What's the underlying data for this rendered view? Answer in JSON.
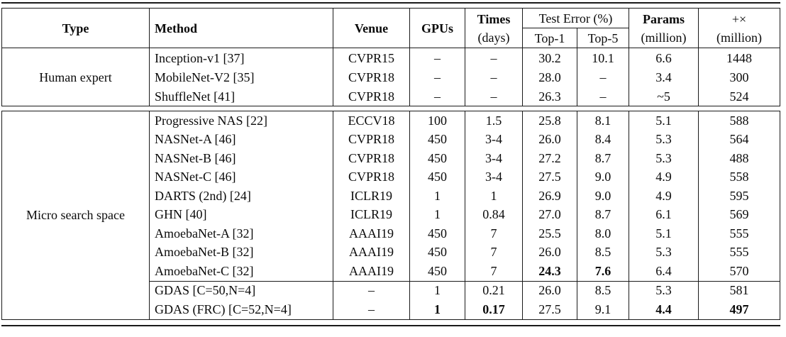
{
  "header": {
    "type": "Type",
    "method": "Method",
    "venue": "Venue",
    "gpus": "GPUs",
    "times": "Times",
    "times_sub": "(days)",
    "test_error": "Test Error (%)",
    "top1": "Top-1",
    "top5": "Top-5",
    "params": "Params",
    "params_sub": "(million)",
    "flops": "+×",
    "flops_sub": "(million)"
  },
  "sections": [
    {
      "type_label": "Human expert",
      "groups": [
        {
          "rows": [
            {
              "method": "Inception-v1 [37]",
              "venue": "CVPR15",
              "gpus": "–",
              "times": "–",
              "top1": "30.2",
              "top5": "10.1",
              "params": "6.6",
              "flops": "1448"
            },
            {
              "method": "MobileNet-V2 [35]",
              "venue": "CVPR18",
              "gpus": "–",
              "times": "–",
              "top1": "28.0",
              "top5": "–",
              "params": "3.4",
              "flops": "300"
            },
            {
              "method": "ShuffleNet [41]",
              "venue": "CVPR18",
              "gpus": "–",
              "times": "–",
              "top1": "26.3",
              "top5": "–",
              "params": "~5",
              "flops": "524"
            }
          ]
        }
      ]
    },
    {
      "type_label": "Micro search space",
      "groups": [
        {
          "rows": [
            {
              "method": "Progressive NAS [22]",
              "venue": "ECCV18",
              "gpus": "100",
              "times": "1.5",
              "top1": "25.8",
              "top5": "8.1",
              "params": "5.1",
              "flops": "588"
            },
            {
              "method": "NASNet-A [46]",
              "venue": "CVPR18",
              "gpus": "450",
              "times": "3-4",
              "top1": "26.0",
              "top5": "8.4",
              "params": "5.3",
              "flops": "564"
            },
            {
              "method": "NASNet-B [46]",
              "venue": "CVPR18",
              "gpus": "450",
              "times": "3-4",
              "top1": "27.2",
              "top5": "8.7",
              "params": "5.3",
              "flops": "488"
            },
            {
              "method": "NASNet-C [46]",
              "venue": "CVPR18",
              "gpus": "450",
              "times": "3-4",
              "top1": "27.5",
              "top5": "9.0",
              "params": "4.9",
              "flops": "558"
            },
            {
              "method": "DARTS (2nd) [24]",
              "venue": "ICLR19",
              "gpus": "1",
              "times": "1",
              "top1": "26.9",
              "top5": "9.0",
              "params": "4.9",
              "flops": "595"
            },
            {
              "method": "GHN [40]",
              "venue": "ICLR19",
              "gpus": "1",
              "times": "0.84",
              "top1": "27.0",
              "top5": "8.7",
              "params": "6.1",
              "flops": "569"
            },
            {
              "method": "AmoebaNet-A [32]",
              "venue": "AAAI19",
              "gpus": "450",
              "times": "7",
              "top1": "25.5",
              "top5": "8.0",
              "params": "5.1",
              "flops": "555"
            },
            {
              "method": "AmoebaNet-B [32]",
              "venue": "AAAI19",
              "gpus": "450",
              "times": "7",
              "top1": "26.0",
              "top5": "8.5",
              "params": "5.3",
              "flops": "555"
            },
            {
              "method": "AmoebaNet-C [32]",
              "venue": "AAAI19",
              "gpus": "450",
              "times": "7",
              "top1": "24.3",
              "top5": "7.6",
              "params": "6.4",
              "flops": "570",
              "bold": [
                "top1",
                "top5"
              ]
            }
          ]
        },
        {
          "rows": [
            {
              "method": "GDAS [C=50,N=4]",
              "venue": "–",
              "gpus": "1",
              "times": "0.21",
              "top1": "26.0",
              "top5": "8.5",
              "params": "5.3",
              "flops": "581"
            },
            {
              "method": "GDAS (FRC) [C=52,N=4]",
              "venue": "–",
              "gpus": "1",
              "times": "0.17",
              "top1": "27.5",
              "top5": "9.1",
              "params": "4.4",
              "flops": "497",
              "bold": [
                "gpus",
                "times",
                "params",
                "flops"
              ]
            }
          ]
        }
      ]
    }
  ]
}
